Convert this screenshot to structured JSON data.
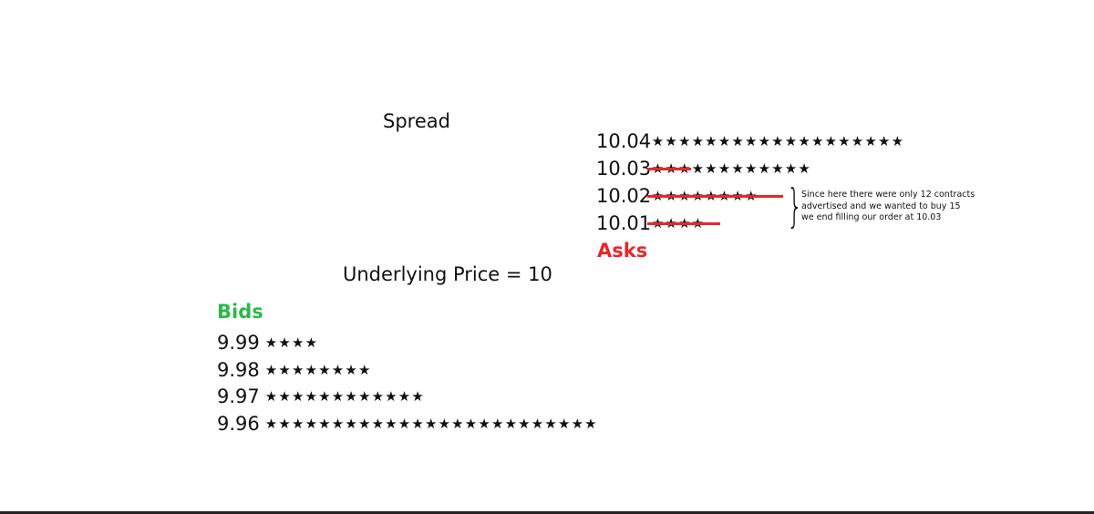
{
  "labels": {
    "spread": "Spread",
    "underlying": "Underlying Price = 10",
    "bids": "Bids",
    "asks": "Asks",
    "note": [
      "Since here there were only 12 contracts",
      "advertised and we wanted to buy 15",
      "we end filling our order at 10.03"
    ]
  },
  "colors": {
    "bids": "#2db84a",
    "asks": "#e8262b",
    "strike": "#e8262b"
  },
  "asks": [
    {
      "price": "10.04",
      "count": 19,
      "filled": 0
    },
    {
      "price": "10.03",
      "count": 12,
      "filled": 3
    },
    {
      "price": "10.02",
      "count": 8,
      "filled": 8
    },
    {
      "price": "10.01",
      "count": 4,
      "filled": 4
    }
  ],
  "bids": [
    {
      "price": "9.99",
      "count": 4
    },
    {
      "price": "9.98",
      "count": 8
    },
    {
      "price": "9.97",
      "count": 12
    },
    {
      "price": "9.96",
      "count": 25
    }
  ]
}
